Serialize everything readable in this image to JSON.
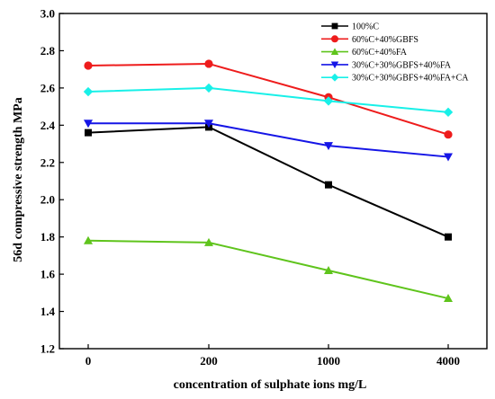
{
  "chart_data": {
    "type": "line",
    "title": "",
    "xlabel": "concentration of sulphate ions mg/L",
    "ylabel": "56d compressive strength MPa",
    "categories": [
      "0",
      "200",
      "1000",
      "4000"
    ],
    "ylim": [
      1.2,
      3.0
    ],
    "yticks": [
      "1.2",
      "1.4",
      "1.6",
      "1.8",
      "2.0",
      "2.2",
      "2.4",
      "2.6",
      "2.8",
      "3.0"
    ],
    "legend_position": "top-right",
    "grid": false,
    "series": [
      {
        "name": "100%C",
        "color": "#000000",
        "marker": "square",
        "values": [
          2.36,
          2.39,
          2.08,
          1.8
        ]
      },
      {
        "name": "60%C+40%GBFS",
        "color": "#ee1c1c",
        "marker": "circle",
        "values": [
          2.72,
          2.73,
          2.55,
          2.35
        ]
      },
      {
        "name": "60%C+40%FA",
        "color": "#5fc41c",
        "marker": "triangle-up",
        "values": [
          1.78,
          1.77,
          1.62,
          1.47
        ]
      },
      {
        "name": "30%C+30%GBFS+40%FA",
        "color": "#1515e6",
        "marker": "triangle-down",
        "values": [
          2.41,
          2.41,
          2.29,
          2.23
        ]
      },
      {
        "name": "30%C+30%GBFS+40%FA+CA",
        "color": "#18f0e8",
        "marker": "diamond",
        "values": [
          2.58,
          2.6,
          2.53,
          2.47
        ]
      }
    ]
  }
}
